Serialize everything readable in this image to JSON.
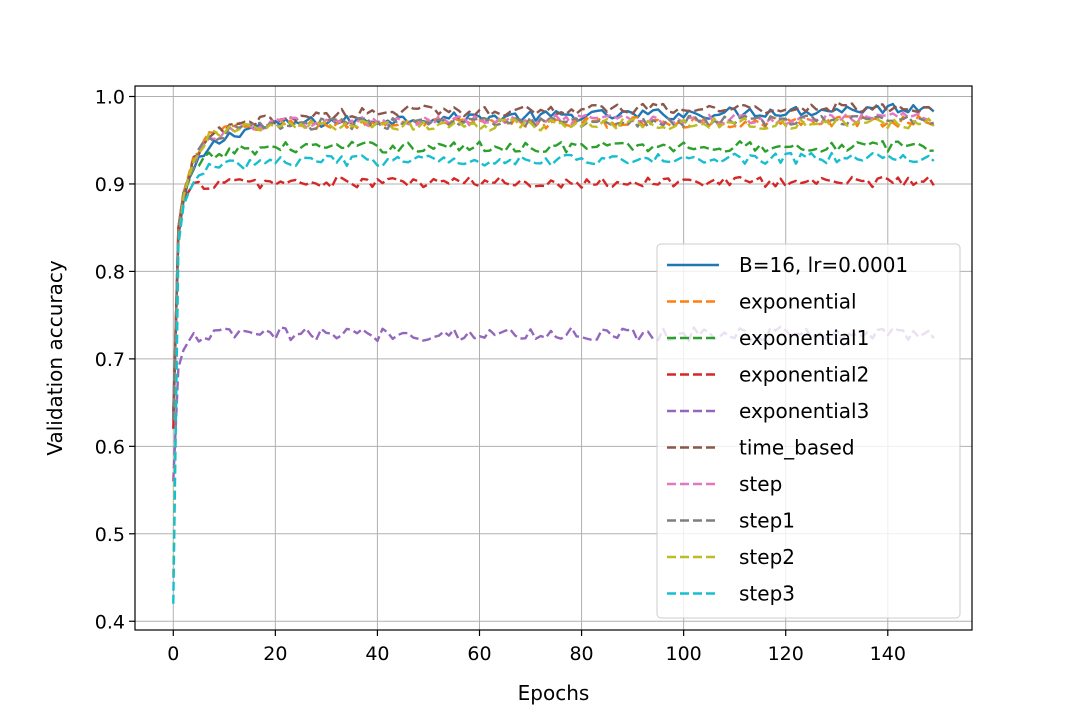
{
  "chart_data": {
    "type": "line",
    "title": "",
    "xlabel": "Epochs",
    "ylabel": "Validation accuracy",
    "xlim": [
      -7.5,
      156.5
    ],
    "ylim": [
      0.39,
      1.012
    ],
    "xticks": [
      "0",
      "20",
      "40",
      "60",
      "80",
      "100",
      "120",
      "140"
    ],
    "yticks": [
      "0.4",
      "0.5",
      "0.6",
      "0.7",
      "0.8",
      "0.9",
      "1.0"
    ],
    "grid": true,
    "legend_position": "center-right",
    "epochs": 150,
    "series": [
      {
        "name": "B=16, lr=0.0001",
        "color": "#1f77b4",
        "style": "solid",
        "keypoints": [
          [
            0,
            0.64
          ],
          [
            1,
            0.84
          ],
          [
            2,
            0.88
          ],
          [
            3,
            0.905
          ],
          [
            5,
            0.925
          ],
          [
            8,
            0.945
          ],
          [
            12,
            0.958
          ],
          [
            16,
            0.965
          ],
          [
            25,
            0.97
          ],
          [
            50,
            0.975
          ],
          [
            100,
            0.98
          ],
          [
            149,
            0.988
          ]
        ],
        "noise": 0.004
      },
      {
        "name": "exponential",
        "color": "#ff7f0e",
        "style": "dashed",
        "keypoints": [
          [
            0,
            0.64
          ],
          [
            1,
            0.85
          ],
          [
            2,
            0.89
          ],
          [
            4,
            0.93
          ],
          [
            7,
            0.955
          ],
          [
            10,
            0.962
          ],
          [
            20,
            0.968
          ],
          [
            149,
            0.972
          ]
        ],
        "noise": 0.004
      },
      {
        "name": "exponential1",
        "color": "#2ca02c",
        "style": "dashed",
        "keypoints": [
          [
            0,
            0.63
          ],
          [
            1,
            0.85
          ],
          [
            2,
            0.89
          ],
          [
            4,
            0.915
          ],
          [
            7,
            0.93
          ],
          [
            12,
            0.938
          ],
          [
            20,
            0.942
          ],
          [
            149,
            0.943
          ]
        ],
        "noise": 0.004
      },
      {
        "name": "exponential2",
        "color": "#d62728",
        "style": "dashed",
        "keypoints": [
          [
            0,
            0.62
          ],
          [
            1,
            0.85
          ],
          [
            2,
            0.885
          ],
          [
            4,
            0.897
          ],
          [
            8,
            0.901
          ],
          [
            149,
            0.903
          ]
        ],
        "noise": 0.004
      },
      {
        "name": "exponential3",
        "color": "#9467bd",
        "style": "dashed",
        "keypoints": [
          [
            0,
            0.56
          ],
          [
            1,
            0.69
          ],
          [
            2,
            0.71
          ],
          [
            3,
            0.72
          ],
          [
            5,
            0.726
          ],
          [
            10,
            0.728
          ],
          [
            149,
            0.729
          ]
        ],
        "noise": 0.005
      },
      {
        "name": "time_based",
        "color": "#8c564b",
        "style": "dashed",
        "keypoints": [
          [
            0,
            0.635
          ],
          [
            1,
            0.84
          ],
          [
            2,
            0.885
          ],
          [
            4,
            0.925
          ],
          [
            7,
            0.955
          ],
          [
            12,
            0.965
          ],
          [
            20,
            0.975
          ],
          [
            40,
            0.983
          ],
          [
            149,
            0.988
          ]
        ],
        "noise": 0.004
      },
      {
        "name": "step",
        "color": "#e377c2",
        "style": "dashed",
        "keypoints": [
          [
            0,
            0.63
          ],
          [
            1,
            0.85
          ],
          [
            2,
            0.89
          ],
          [
            4,
            0.925
          ],
          [
            7,
            0.952
          ],
          [
            12,
            0.962
          ],
          [
            20,
            0.97
          ],
          [
            149,
            0.976
          ]
        ],
        "noise": 0.004
      },
      {
        "name": "step1",
        "color": "#7f7f7f",
        "style": "dashed",
        "keypoints": [
          [
            0,
            0.63
          ],
          [
            1,
            0.85
          ],
          [
            2,
            0.89
          ],
          [
            4,
            0.925
          ],
          [
            7,
            0.952
          ],
          [
            12,
            0.962
          ],
          [
            20,
            0.968
          ],
          [
            149,
            0.974
          ]
        ],
        "noise": 0.004
      },
      {
        "name": "step2",
        "color": "#bcbd22",
        "style": "dashed",
        "keypoints": [
          [
            0,
            0.45
          ],
          [
            1,
            0.83
          ],
          [
            2,
            0.885
          ],
          [
            4,
            0.93
          ],
          [
            7,
            0.955
          ],
          [
            12,
            0.962
          ],
          [
            20,
            0.966
          ],
          [
            149,
            0.97
          ]
        ],
        "noise": 0.004
      },
      {
        "name": "step3",
        "color": "#17becf",
        "style": "dashed",
        "keypoints": [
          [
            0,
            0.42
          ],
          [
            1,
            0.83
          ],
          [
            2,
            0.875
          ],
          [
            4,
            0.905
          ],
          [
            7,
            0.918
          ],
          [
            12,
            0.922
          ],
          [
            20,
            0.926
          ],
          [
            149,
            0.93
          ]
        ],
        "noise": 0.004
      }
    ]
  }
}
